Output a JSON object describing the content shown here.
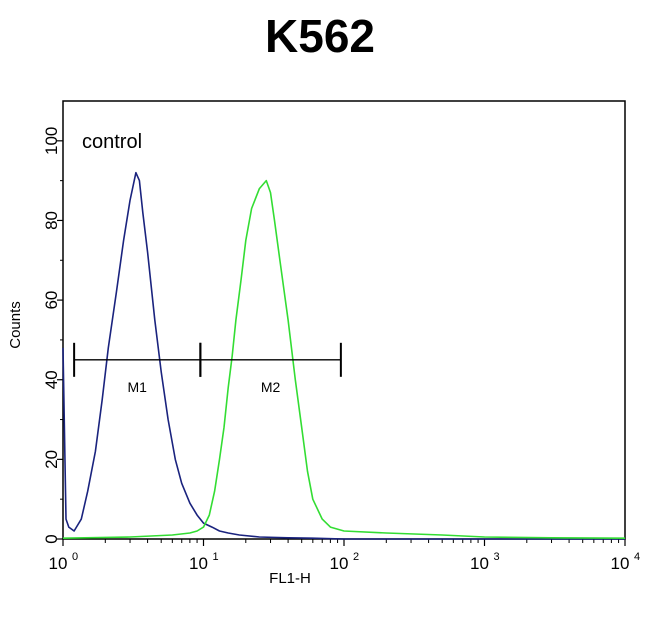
{
  "chart_data": {
    "type": "line",
    "title": "K562",
    "xlabel": "FL1-H",
    "ylabel": "Counts",
    "x_scale": "log",
    "xlim": [
      1,
      10000
    ],
    "ylim": [
      0,
      110
    ],
    "x_ticks": [
      {
        "base": "10",
        "exp": "0",
        "value": 1
      },
      {
        "base": "10",
        "exp": "1",
        "value": 10
      },
      {
        "base": "10",
        "exp": "2",
        "value": 100
      },
      {
        "base": "10",
        "exp": "3",
        "value": 1000
      },
      {
        "base": "10",
        "exp": "4",
        "value": 10000
      }
    ],
    "y_ticks": [
      "0",
      "20",
      "40",
      "60",
      "80",
      "100"
    ],
    "annotation": "control",
    "markers": [
      {
        "label": "M1",
        "x_start": 1.2,
        "x_end": 9.5,
        "y": 45
      },
      {
        "label": "M2",
        "x_start": 9.5,
        "x_end": 95,
        "y": 45
      }
    ],
    "series": [
      {
        "color": "#1a237e",
        "x": [
          1.0,
          1.05,
          1.1,
          1.2,
          1.35,
          1.5,
          1.7,
          1.9,
          2.1,
          2.4,
          2.7,
          3.0,
          3.3,
          3.5,
          3.7,
          4.0,
          4.5,
          5.0,
          5.6,
          6.3,
          7.0,
          8.0,
          9.0,
          10.0,
          11.5,
          13.0,
          15.0,
          18.0,
          25.0,
          40.0,
          60.0,
          100.0,
          1000.0,
          10000.0
        ],
        "y": [
          48,
          5,
          3,
          2,
          5,
          12,
          22,
          35,
          48,
          62,
          75,
          85,
          92,
          90,
          82,
          72,
          55,
          42,
          30,
          20,
          14,
          9,
          6,
          4,
          3,
          2,
          1.5,
          1,
          0.5,
          0.3,
          0.2,
          0,
          0,
          0
        ]
      },
      {
        "color": "#33dd33",
        "x": [
          1.0,
          3.0,
          6.0,
          8.0,
          9.0,
          10.0,
          11.0,
          12.0,
          13.0,
          14.0,
          15.0,
          16.0,
          17.0,
          18.5,
          20.0,
          22.0,
          25.0,
          28.0,
          30.0,
          32.0,
          35.0,
          40.0,
          45.0,
          50.0,
          55.0,
          60.0,
          70.0,
          80.0,
          100.0,
          200.0,
          500.0,
          1000.0,
          3000.0,
          10000.0
        ],
        "y": [
          0.2,
          0.5,
          1,
          1.5,
          2,
          3,
          6,
          12,
          20,
          28,
          38,
          46,
          55,
          65,
          75,
          83,
          88,
          90,
          87,
          80,
          70,
          55,
          40,
          28,
          17,
          10,
          5,
          3,
          2,
          1.5,
          1,
          0.5,
          0.3,
          0.2
        ]
      }
    ]
  }
}
